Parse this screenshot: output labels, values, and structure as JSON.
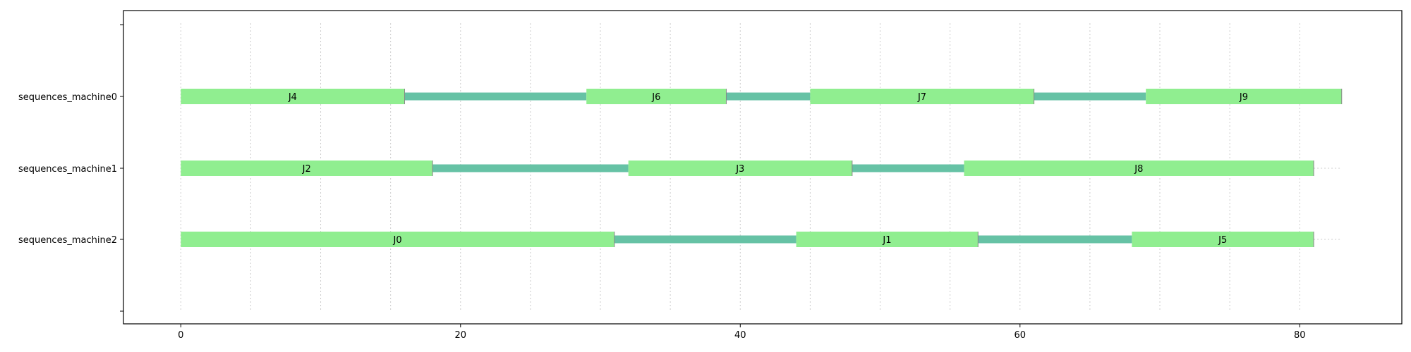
{
  "chart_data": {
    "type": "gantt",
    "title": "",
    "xlabel": "",
    "ylabel": "",
    "xlim": [
      -4.1,
      87.3
    ],
    "x_ticks": [
      0,
      20,
      40,
      60,
      80
    ],
    "x_tick_labels": [
      "0",
      "20",
      "40",
      "60",
      "80"
    ],
    "x_minor_grid": [
      0,
      5,
      10,
      15,
      20,
      25,
      30,
      35,
      40,
      45,
      50,
      55,
      60,
      65,
      70,
      75,
      80
    ],
    "horizon": 83,
    "grid": "vertical dotted",
    "rows": [
      {
        "label": "sequences_machine0",
        "tasks": [
          {
            "name": "J4",
            "start": 0,
            "end": 16
          },
          {
            "name": "J6",
            "start": 29,
            "end": 39
          },
          {
            "name": "J7",
            "start": 45,
            "end": 61
          },
          {
            "name": "J9",
            "start": 69,
            "end": 83
          }
        ]
      },
      {
        "label": "sequences_machine1",
        "tasks": [
          {
            "name": "J2",
            "start": 0,
            "end": 18
          },
          {
            "name": "J3",
            "start": 32,
            "end": 48
          },
          {
            "name": "J8",
            "start": 56,
            "end": 81
          }
        ]
      },
      {
        "label": "sequences_machine2",
        "tasks": [
          {
            "name": "J0",
            "start": 0,
            "end": 31
          },
          {
            "name": "J1",
            "start": 44,
            "end": 57
          },
          {
            "name": "J5",
            "start": 68,
            "end": 81
          }
        ]
      }
    ],
    "colors": {
      "task": "#90ee90",
      "transition": "#66c2a5",
      "grid": "#cccccc",
      "axis": "#000000"
    }
  }
}
